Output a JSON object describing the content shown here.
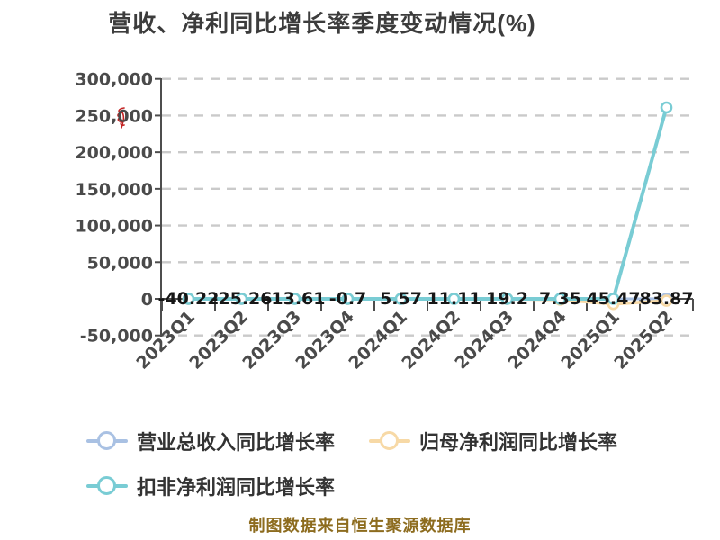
{
  "title": {
    "text": "营收、净利同比增长率季度变动情况(%)"
  },
  "caption": {
    "text": "制图数据来自恒生聚源数据库"
  },
  "colors": {
    "background": "#ffffff",
    "title": "#3c3c3c",
    "axis": "#4d4d4d",
    "axis_label": "#4a4a4a",
    "gridline": "#cacaca",
    "data_label": "#161616",
    "legend_text": "#333333",
    "caption": "#8d6c1f",
    "red_mark": "#c42323",
    "series_revenue": "#a9c1e3",
    "series_net_profit": "#f7d9a6",
    "series_non_gaap": "#79ccd4"
  },
  "y_axis": {
    "min": -50000,
    "max": 300000,
    "step": 50000,
    "labels": [
      "300,000",
      "250,000",
      "200,000",
      "150,000",
      "100,000",
      "50,000",
      "0",
      "-50,000"
    ]
  },
  "x_axis": {
    "labels": [
      "2023Q1",
      "2023Q2",
      "2023Q3",
      "2023Q4",
      "2024Q1",
      "2024Q2",
      "2024Q3",
      "2024Q4",
      "2025Q1",
      "2025Q2"
    ]
  },
  "chart_data": {
    "type": "line",
    "title": "营收、净利同比增长率季度变动情况(%)",
    "categories": [
      "2023Q1",
      "2023Q2",
      "2023Q3",
      "2023Q4",
      "2024Q1",
      "2024Q2",
      "2024Q3",
      "2024Q4",
      "2025Q1",
      "2025Q2"
    ],
    "ylim": [
      -50000,
      300000
    ],
    "grid": "horizontal-dashed",
    "legend_position": "bottom-left",
    "point_labels": [
      "-40.22",
      "-25.26",
      "-13.61",
      "-0.7",
      "5.57",
      "11.11",
      "19.2",
      "7.35",
      "45.47",
      "83.87"
    ],
    "series": [
      {
        "name": "营业总收入同比增长率",
        "color": "#a9c1e3",
        "values": [
          -40.22,
          -25.26,
          -13.61,
          -0.7,
          5.57,
          11.11,
          19.2,
          7.35,
          45.47,
          83.87
        ],
        "note": "values shown as black data labels along the zero line"
      },
      {
        "name": "归母净利润同比增长率",
        "color": "#f7d9a6",
        "values": [
          0,
          0,
          0,
          0,
          0,
          0,
          0,
          -1200,
          -7000,
          -2600
        ],
        "note": "unlabeled; hugs zero line, dips slightly below it from 2024Q4; estimated from pixels"
      },
      {
        "name": "扣非净利润同比增长率",
        "color": "#79ccd4",
        "values": [
          0,
          0,
          0,
          0,
          0,
          0,
          0,
          0,
          0,
          261000
        ],
        "note": "unlabeled; flat near zero then spikes at 2025Q2 to ≈261,000 estimated from gridlines"
      }
    ]
  },
  "legend": {
    "items": [
      {
        "label": "营业总收入同比增长率",
        "color": "#a9c1e3"
      },
      {
        "label": "归母净利润同比增长率",
        "color": "#f7d9a6"
      },
      {
        "label": "扣非净利润同比增长率",
        "color": "#79ccd4"
      }
    ]
  }
}
